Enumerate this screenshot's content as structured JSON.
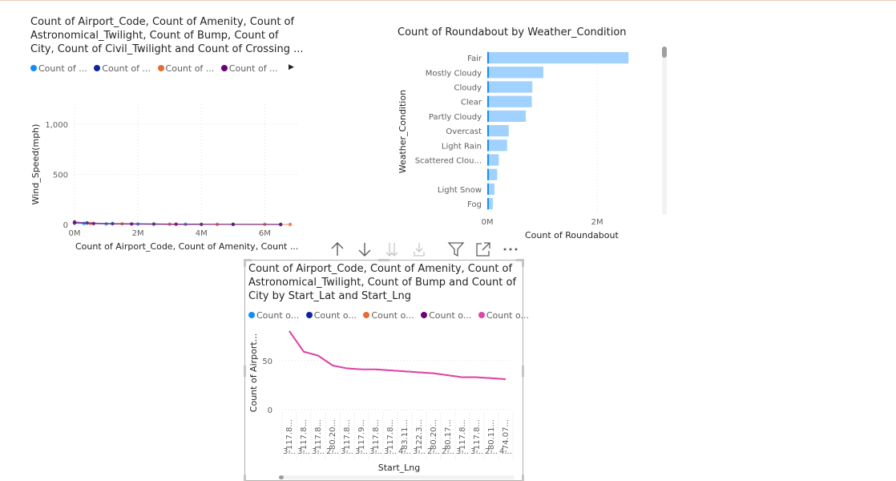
{
  "colors": {
    "c1": "#118dff",
    "c2": "#12239e",
    "c3": "#e66c37",
    "c4": "#6b007b",
    "c5": "#e044a7",
    "bar": "#a0d1ff",
    "barEdge": "#118dff"
  },
  "chart1": {
    "title_lines": [
      "Count of Airport_Code, Count of Amenity, Count of",
      "Astronomical_Twilight, Count of Bump, Count of",
      "City, Count of Civil_Twilight and Count of Crossing ..."
    ],
    "legend": [
      "Count of ...",
      "Count of ...",
      "Count of ...",
      "Count of ..."
    ],
    "legend_more": "▶",
    "ylabel": "Wind_Speed(mph)",
    "xlabel": "Count of Airport_Code, Count of Amenity, Count ..."
  },
  "chart2": {
    "title": "Count of Roundabout by Weather_Condition",
    "ylabel": "Weather_Condition",
    "xlabel": "Count of Roundabout"
  },
  "chart3": {
    "title_lines": [
      "Count of Airport_Code, Count of Amenity, Count of",
      "Astronomical_Twilight, Count of Bump and Count of",
      "City by Start_Lat and Start_Lng"
    ],
    "legend": [
      "Count o...",
      "Count o...",
      "Count o...",
      "Count o...",
      "Count o..."
    ],
    "ylabel": "Count of Airport...",
    "xlabel": "Start_Lng"
  },
  "toolbar": {
    "icons": [
      "sort-ascending-icon",
      "sort-descending-icon",
      "expand-all-down-icon",
      "drill-down-icon",
      "filter-icon",
      "focus-mode-icon",
      "more-options-icon"
    ]
  },
  "chart_data": [
    {
      "type": "scatter",
      "title": "Count of Airport_Code, Count of Amenity, Count of Astronomical_Twilight, Count of Bump, Count of City, Count of Civil_Twilight and Count of Crossing ...",
      "xlabel": "Count of Airport_Code, Count of Amenity, Count ...",
      "ylabel": "Wind_Speed(mph)",
      "xlim": [
        0,
        7000000
      ],
      "ylim": [
        0,
        1200
      ],
      "x_ticks": [
        "0M",
        "2M",
        "4M",
        "6M"
      ],
      "y_ticks": [
        "0",
        "500",
        "1,000"
      ],
      "grid": true,
      "series": [
        {
          "color": "#118dff",
          "x": [
            0,
            300000,
            1000000,
            2000000,
            3500000,
            5000000,
            6500000
          ],
          "y": [
            12,
            10,
            6,
            4,
            2,
            1,
            0
          ]
        },
        {
          "color": "#12239e",
          "x": [
            0,
            400000,
            1200000,
            2500000,
            4000000
          ],
          "y": [
            25,
            15,
            8,
            4,
            1
          ]
        },
        {
          "color": "#e66c37",
          "x": [
            0,
            500000,
            1500000,
            3000000,
            4500000,
            6000000,
            6800000
          ],
          "y": [
            15,
            10,
            6,
            3,
            1,
            1,
            0
          ]
        },
        {
          "color": "#6b007b",
          "x": [
            0,
            600000,
            1800000,
            3200000,
            5000000,
            6500000
          ],
          "y": [
            18,
            9,
            5,
            3,
            1,
            0
          ]
        }
      ]
    },
    {
      "type": "bar",
      "orientation": "horizontal",
      "title": "Count of Roundabout by Weather_Condition",
      "xlabel": "Count of Roundabout",
      "ylabel": "Weather_Condition",
      "categories": [
        "Fair",
        "Mostly Cloudy",
        "Cloudy",
        "Clear",
        "Partly Cloudy",
        "Overcast",
        "Light Rain",
        "Scattered Clou...",
        "",
        "Light Snow",
        "Fog"
      ],
      "values": [
        2570000,
        1020000,
        820000,
        810000,
        700000,
        390000,
        360000,
        210000,
        180000,
        130000,
        100000
      ],
      "xlim": [
        0,
        2800000
      ],
      "x_ticks": [
        "0M",
        "2M"
      ],
      "grid": true
    },
    {
      "type": "line",
      "title": "Count of Airport_Code, Count of Amenity, Count of Astronomical_Twilight, Count of Bump and Count of City by Start_Lat and Start_Lng",
      "xlabel": "Start_Lng",
      "ylabel": "Count of Airport...",
      "ylim": [
        0,
        80
      ],
      "y_ticks": [
        "0",
        "50"
      ],
      "categories": [
        "-117.8...",
        "-117.8...",
        "-117.8...",
        "-80.20...",
        "-117.8...",
        "-117.9...",
        "-117.8...",
        "-117.8...",
        "-83.11...",
        "-122.3...",
        "-80.20...",
        "-80.17...",
        "-117.8...",
        "-117.8...",
        "-80.11...",
        "-74.07..."
      ],
      "categories_lat": [
        "3...",
        "3...",
        "3...",
        "2...",
        "3...",
        "3...",
        "3...",
        "3...",
        "4...",
        "3...",
        "2...",
        "2...",
        "3...",
        "3...",
        "2...",
        "4..."
      ],
      "series": [
        {
          "name": "Count o...",
          "color": "#118dff",
          "values": [
            80,
            59,
            55,
            45,
            42,
            41,
            41,
            40,
            39,
            38,
            37,
            35,
            33,
            33,
            32,
            31
          ]
        },
        {
          "name": "Count o...",
          "color": "#12239e",
          "values": [
            80,
            59,
            55,
            45,
            42,
            41,
            41,
            40,
            39,
            38,
            37,
            35,
            33,
            33,
            32,
            31
          ]
        },
        {
          "name": "Count o...",
          "color": "#e66c37",
          "values": [
            80,
            59,
            55,
            45,
            42,
            41,
            41,
            40,
            39,
            38,
            37,
            35,
            33,
            33,
            32,
            31
          ]
        },
        {
          "name": "Count o...",
          "color": "#6b007b",
          "values": [
            80,
            59,
            55,
            45,
            42,
            41,
            41,
            40,
            39,
            38,
            37,
            35,
            33,
            33,
            32,
            31
          ]
        },
        {
          "name": "Count o...",
          "color": "#e044a7",
          "values": [
            80,
            59,
            55,
            45,
            42,
            41,
            41,
            40,
            39,
            38,
            37,
            35,
            33,
            33,
            32,
            31
          ]
        }
      ]
    }
  ]
}
